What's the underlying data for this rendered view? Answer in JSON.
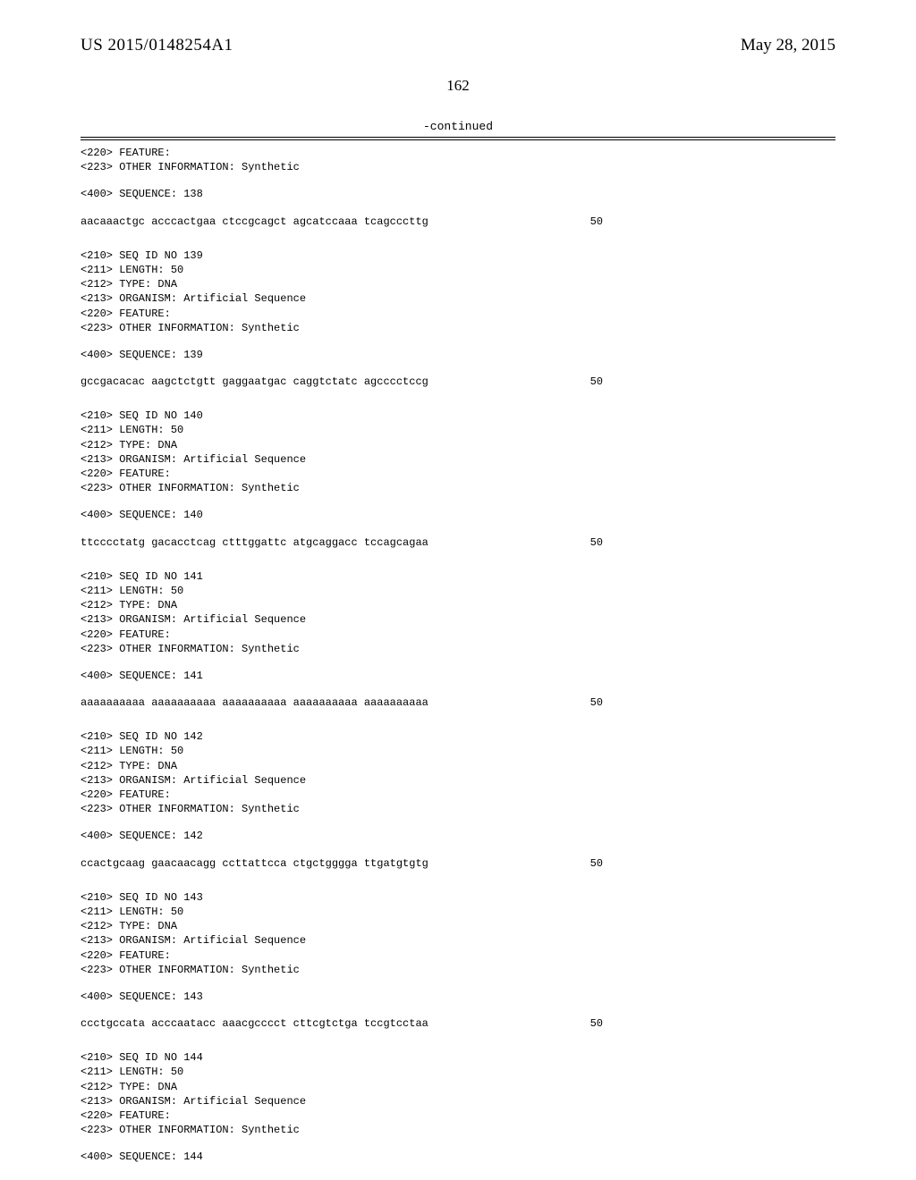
{
  "header": {
    "pub_number": "US 2015/0148254A1",
    "pub_date": "May 28, 2015"
  },
  "page_number": "162",
  "continued_label": "-continued",
  "blocks": [
    {
      "pre": [
        "<220> FEATURE:",
        "<223> OTHER INFORMATION: Synthetic"
      ],
      "seq_label": "<400> SEQUENCE: 138",
      "sequence": "aacaaactgc acccactgaa ctccgcagct agcatccaaa tcagcccttg",
      "length": "50"
    },
    {
      "pre": [
        "<210> SEQ ID NO 139",
        "<211> LENGTH: 50",
        "<212> TYPE: DNA",
        "<213> ORGANISM: Artificial Sequence",
        "<220> FEATURE:",
        "<223> OTHER INFORMATION: Synthetic"
      ],
      "seq_label": "<400> SEQUENCE: 139",
      "sequence": "gccgacacac aagctctgtt gaggaatgac caggtctatc agcccctccg",
      "length": "50"
    },
    {
      "pre": [
        "<210> SEQ ID NO 140",
        "<211> LENGTH: 50",
        "<212> TYPE: DNA",
        "<213> ORGANISM: Artificial Sequence",
        "<220> FEATURE:",
        "<223> OTHER INFORMATION: Synthetic"
      ],
      "seq_label": "<400> SEQUENCE: 140",
      "sequence": "ttcccctatg gacacctcag ctttggattc atgcaggacc tccagcagaa",
      "length": "50"
    },
    {
      "pre": [
        "<210> SEQ ID NO 141",
        "<211> LENGTH: 50",
        "<212> TYPE: DNA",
        "<213> ORGANISM: Artificial Sequence",
        "<220> FEATURE:",
        "<223> OTHER INFORMATION: Synthetic"
      ],
      "seq_label": "<400> SEQUENCE: 141",
      "sequence": "aaaaaaaaaa aaaaaaaaaa aaaaaaaaaa aaaaaaaaaa aaaaaaaaaa",
      "length": "50"
    },
    {
      "pre": [
        "<210> SEQ ID NO 142",
        "<211> LENGTH: 50",
        "<212> TYPE: DNA",
        "<213> ORGANISM: Artificial Sequence",
        "<220> FEATURE:",
        "<223> OTHER INFORMATION: Synthetic"
      ],
      "seq_label": "<400> SEQUENCE: 142",
      "sequence": "ccactgcaag gaacaacagg ccttattcca ctgctgggga ttgatgtgtg",
      "length": "50"
    },
    {
      "pre": [
        "<210> SEQ ID NO 143",
        "<211> LENGTH: 50",
        "<212> TYPE: DNA",
        "<213> ORGANISM: Artificial Sequence",
        "<220> FEATURE:",
        "<223> OTHER INFORMATION: Synthetic"
      ],
      "seq_label": "<400> SEQUENCE: 143",
      "sequence": "ccctgccata acccaatacc aaacgcccct cttcgtctga tccgtcctaa",
      "length": "50"
    },
    {
      "pre": [
        "<210> SEQ ID NO 144",
        "<211> LENGTH: 50",
        "<212> TYPE: DNA",
        "<213> ORGANISM: Artificial Sequence",
        "<220> FEATURE:",
        "<223> OTHER INFORMATION: Synthetic"
      ],
      "seq_label": "<400> SEQUENCE: 144",
      "sequence": "",
      "length": ""
    }
  ]
}
